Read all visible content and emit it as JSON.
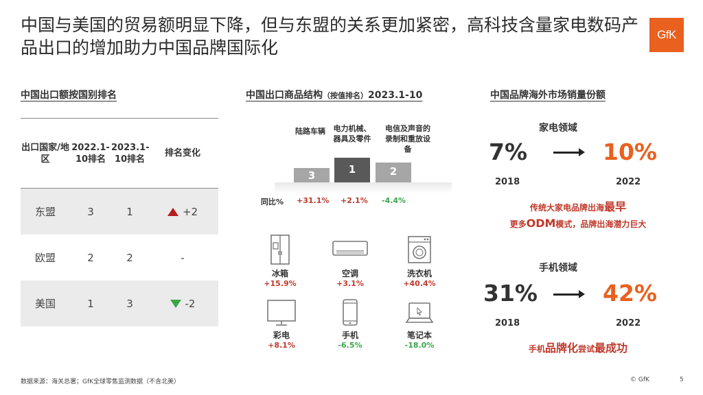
{
  "title": "中国与美国的贸易额明显下降，但与东盟的关系更加紧密，高科技含量家电数码产品出口的增加助力中国品牌国际化",
  "logo": "GfK",
  "left": {
    "section_title": "中国出口额按国别排名",
    "headers": [
      "出口国家/地区",
      "2022.1-10排名",
      "2023.1-10排名",
      "排名变化"
    ],
    "rows": [
      {
        "region": "东盟",
        "rank_2022": "3",
        "rank_2023": "1",
        "change": "+2",
        "dir": "up"
      },
      {
        "region": "欧盟",
        "rank_2022": "2",
        "rank_2023": "2",
        "change": "-",
        "dir": "none"
      },
      {
        "region": "美国",
        "rank_2022": "1",
        "rank_2023": "3",
        "change": "-2",
        "dir": "down"
      }
    ]
  },
  "middle": {
    "section_title_main": "中国出口商品结构",
    "section_title_small": "（按值排名）",
    "section_title_period": "2023.1-10",
    "podium": [
      {
        "label": "陆路车辆",
        "rank": "3",
        "yoy": "+31.1%"
      },
      {
        "label": "电力机械、器具及零件",
        "rank": "1",
        "yoy": "+2.1%"
      },
      {
        "label": "电信及声音的录制和重放设备",
        "rank": "2",
        "yoy": "-4.4%"
      }
    ],
    "yoy_label": "同比%",
    "products": [
      {
        "name": "冰箱",
        "value": "+15.9%",
        "icon": "fridge-icon"
      },
      {
        "name": "空调",
        "value": "+3.1%",
        "icon": "air-conditioner-icon"
      },
      {
        "name": "洗衣机",
        "value": "+40.4%",
        "icon": "washing-machine-icon"
      },
      {
        "name": "彩电",
        "value": "+8.1%",
        "icon": "tv-icon"
      },
      {
        "name": "手机",
        "value": "-6.5%",
        "icon": "phone-icon"
      },
      {
        "name": "笔记本",
        "value": "-18.0%",
        "icon": "laptop-icon"
      }
    ],
    "colors": {
      "positive": "#c0392b",
      "negative": "#3aa54a"
    }
  },
  "right": {
    "section_title": "中国品牌海外市场销量份额",
    "appliance": {
      "label": "家电领域",
      "from_pct": "7%",
      "to_pct": "10%",
      "from_year": "2018",
      "to_year": "2022",
      "note1_pre": "传统大家电品牌出海",
      "note1_emph": "最早",
      "note2_pre": "更多",
      "note2_emph": "ODM",
      "note2_post": "模式，品牌出海潜力巨大"
    },
    "phone": {
      "label": "手机领域",
      "from_pct": "31%",
      "to_pct": "42%",
      "from_year": "2018",
      "to_year": "2022",
      "note_pre": "手机",
      "note_emph1": "品牌化",
      "note_mid": "尝试",
      "note_emph2": "最成功"
    }
  },
  "footer": {
    "source": "数据来源：海关总署；GfK全球零售监测数据（不含北美）",
    "copyright": "© GfK",
    "page": "5"
  },
  "colors": {
    "brand": "#e9601f",
    "pod_light": "#a6a6a6",
    "pod_dark": "#595959"
  }
}
